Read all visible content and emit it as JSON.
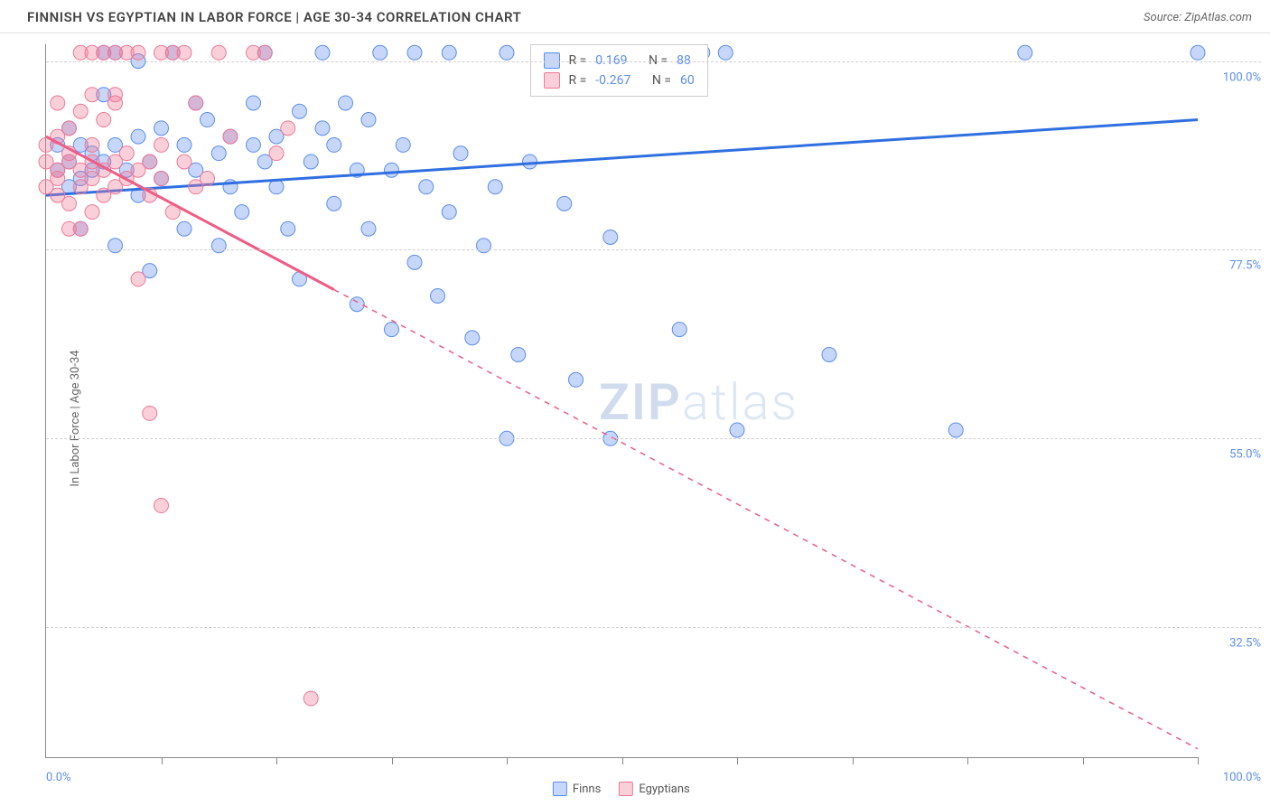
{
  "header": {
    "title": "FINNISH VS EGYPTIAN IN LABOR FORCE | AGE 30-34 CORRELATION CHART",
    "source": "Source: ZipAtlas.com"
  },
  "y_axis_label": "In Labor Force | Age 30-34",
  "watermark": "ZIPatlas",
  "chart": {
    "type": "scatter",
    "xlim": [
      0,
      100
    ],
    "ylim": [
      17,
      102
    ],
    "background_color": "#ffffff",
    "grid_color": "#d0d0d0",
    "y_ticks": [
      {
        "v": 100.0,
        "label": "100.0%"
      },
      {
        "v": 77.5,
        "label": "77.5%"
      },
      {
        "v": 55.0,
        "label": "55.0%"
      },
      {
        "v": 32.5,
        "label": "32.5%"
      }
    ],
    "x_tick_positions": [
      10,
      20,
      30,
      40,
      50,
      60,
      70,
      80,
      90,
      100
    ],
    "x_label_min": "0.0%",
    "x_label_max": "100.0%",
    "series": [
      {
        "name": "Finns",
        "color_fill": "rgba(91,141,239,0.35)",
        "color_stroke": "#5b8def",
        "marker_radius": 8,
        "trend": {
          "x1": 0,
          "y1": 84,
          "x2": 100,
          "y2": 93,
          "stroke": "#2f6fe0",
          "width": 3,
          "solid_until_x": 100
        },
        "stats": {
          "R": "0.169",
          "N": "88"
        },
        "points": [
          [
            1,
            90
          ],
          [
            1,
            87
          ],
          [
            2,
            88
          ],
          [
            2,
            85
          ],
          [
            2,
            92
          ],
          [
            3,
            86
          ],
          [
            3,
            90
          ],
          [
            3,
            80
          ],
          [
            4,
            89
          ],
          [
            4,
            87
          ],
          [
            5,
            88
          ],
          [
            5,
            96
          ],
          [
            5,
            101
          ],
          [
            6,
            101
          ],
          [
            6,
            78
          ],
          [
            6,
            90
          ],
          [
            7,
            87
          ],
          [
            8,
            84
          ],
          [
            8,
            91
          ],
          [
            8,
            100
          ],
          [
            9,
            88
          ],
          [
            9,
            75
          ],
          [
            10,
            92
          ],
          [
            10,
            86
          ],
          [
            11,
            101
          ],
          [
            12,
            90
          ],
          [
            12,
            80
          ],
          [
            13,
            95
          ],
          [
            13,
            87
          ],
          [
            14,
            93
          ],
          [
            15,
            89
          ],
          [
            15,
            78
          ],
          [
            16,
            91
          ],
          [
            16,
            85
          ],
          [
            17,
            82
          ],
          [
            18,
            90
          ],
          [
            18,
            95
          ],
          [
            19,
            88
          ],
          [
            19,
            101
          ],
          [
            20,
            91
          ],
          [
            20,
            85
          ],
          [
            21,
            80
          ],
          [
            22,
            94
          ],
          [
            22,
            74
          ],
          [
            23,
            88
          ],
          [
            24,
            92
          ],
          [
            24,
            101
          ],
          [
            25,
            83
          ],
          [
            25,
            90
          ],
          [
            26,
            95
          ],
          [
            27,
            71
          ],
          [
            27,
            87
          ],
          [
            28,
            80
          ],
          [
            28,
            93
          ],
          [
            29,
            101
          ],
          [
            30,
            68
          ],
          [
            30,
            87
          ],
          [
            31,
            90
          ],
          [
            32,
            101
          ],
          [
            32,
            76
          ],
          [
            33,
            85
          ],
          [
            34,
            72
          ],
          [
            35,
            82
          ],
          [
            35,
            101
          ],
          [
            36,
            89
          ],
          [
            37,
            67
          ],
          [
            38,
            78
          ],
          [
            39,
            85
          ],
          [
            40,
            101
          ],
          [
            41,
            65
          ],
          [
            42,
            88
          ],
          [
            43,
            101
          ],
          [
            45,
            83
          ],
          [
            46,
            62
          ],
          [
            48,
            101
          ],
          [
            49,
            79
          ],
          [
            51,
            101
          ],
          [
            55,
            101
          ],
          [
            57,
            101
          ],
          [
            59,
            101
          ],
          [
            49,
            55
          ],
          [
            60,
            56
          ],
          [
            40,
            55
          ],
          [
            55,
            68
          ],
          [
            68,
            65
          ],
          [
            79,
            56
          ],
          [
            85,
            101
          ],
          [
            100,
            101
          ]
        ]
      },
      {
        "name": "Egyptians",
        "color_fill": "rgba(239,120,150,0.35)",
        "color_stroke": "#ef7896",
        "marker_radius": 8,
        "trend": {
          "x1": 0,
          "y1": 91,
          "x2": 100,
          "y2": 18,
          "stroke": "#ef5c85",
          "width": 3,
          "solid_until_x": 25
        },
        "stats": {
          "R": "-0.267",
          "N": "60"
        },
        "points": [
          [
            0,
            88
          ],
          [
            0,
            90
          ],
          [
            0,
            85
          ],
          [
            1,
            87
          ],
          [
            1,
            91
          ],
          [
            1,
            84
          ],
          [
            1,
            95
          ],
          [
            1,
            86
          ],
          [
            2,
            88
          ],
          [
            2,
            83
          ],
          [
            2,
            92
          ],
          [
            2,
            80
          ],
          [
            2,
            89
          ],
          [
            3,
            87
          ],
          [
            3,
            101
          ],
          [
            3,
            85
          ],
          [
            3,
            94
          ],
          [
            4,
            88
          ],
          [
            4,
            86
          ],
          [
            4,
            101
          ],
          [
            4,
            82
          ],
          [
            4,
            90
          ],
          [
            5,
            101
          ],
          [
            5,
            87
          ],
          [
            5,
            84
          ],
          [
            5,
            93
          ],
          [
            6,
            101
          ],
          [
            6,
            88
          ],
          [
            6,
            85
          ],
          [
            6,
            95
          ],
          [
            7,
            101
          ],
          [
            7,
            86
          ],
          [
            7,
            89
          ],
          [
            8,
            101
          ],
          [
            8,
            87
          ],
          [
            8,
            74
          ],
          [
            9,
            88
          ],
          [
            9,
            84
          ],
          [
            10,
            101
          ],
          [
            10,
            86
          ],
          [
            10,
            90
          ],
          [
            11,
            101
          ],
          [
            11,
            82
          ],
          [
            12,
            88
          ],
          [
            12,
            101
          ],
          [
            13,
            85
          ],
          [
            13,
            95
          ],
          [
            14,
            86
          ],
          [
            15,
            101
          ],
          [
            16,
            91
          ],
          [
            18,
            101
          ],
          [
            19,
            101
          ],
          [
            20,
            89
          ],
          [
            21,
            92
          ],
          [
            9,
            58
          ],
          [
            10,
            47
          ],
          [
            23,
            24
          ],
          [
            6,
            96
          ],
          [
            4,
            96
          ],
          [
            3,
            80
          ]
        ]
      }
    ]
  },
  "bottom_legend": [
    {
      "label": "Finns",
      "fill": "rgba(91,141,239,0.35)",
      "stroke": "#5b8def"
    },
    {
      "label": "Egyptians",
      "fill": "rgba(239,120,150,0.35)",
      "stroke": "#ef7896"
    }
  ],
  "stat_box": {
    "rows": [
      {
        "fill": "rgba(91,141,239,0.35)",
        "stroke": "#5b8def",
        "R_label": "R =",
        "R": "0.169",
        "N_label": "N =",
        "N": "88"
      },
      {
        "fill": "rgba(239,120,150,0.35)",
        "stroke": "#ef7896",
        "R_label": "R =",
        "R": "-0.267",
        "N_label": "N =",
        "N": "60"
      }
    ]
  }
}
